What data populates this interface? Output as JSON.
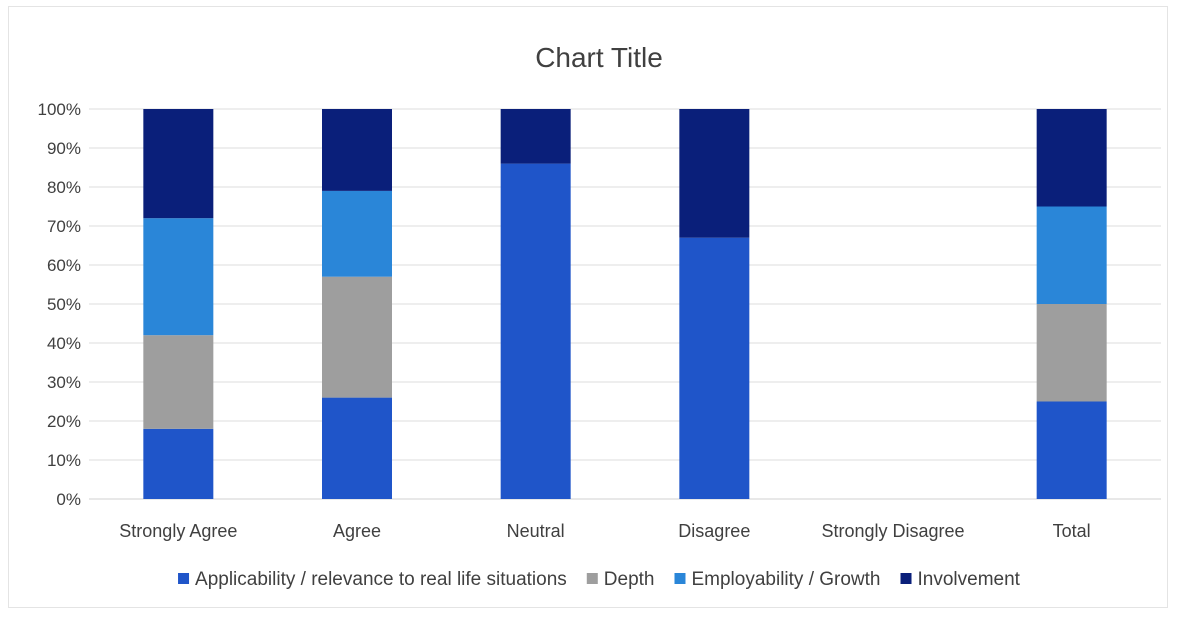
{
  "chart_data": {
    "type": "bar",
    "stacked": true,
    "percent": true,
    "title": "Chart Title",
    "categories": [
      "Strongly Agree",
      "Agree",
      "Neutral",
      "Disagree",
      "Strongly Disagree",
      "Total"
    ],
    "series": [
      {
        "name": "Applicability / relevance to real life situations",
        "color": "#1f55c9",
        "values": [
          18,
          26,
          86,
          67,
          0,
          25
        ]
      },
      {
        "name": "Depth",
        "color": "#9e9e9e",
        "values": [
          24,
          31,
          0,
          0,
          0,
          25
        ]
      },
      {
        "name": "Employability / Growth",
        "color": "#2a86d8",
        "values": [
          30,
          22,
          0,
          0,
          0,
          25
        ]
      },
      {
        "name": "Involvement",
        "color": "#0a1f7a",
        "values": [
          28,
          21,
          14,
          33,
          0,
          25
        ]
      }
    ],
    "y_ticks": [
      "0%",
      "10%",
      "20%",
      "30%",
      "40%",
      "50%",
      "60%",
      "70%",
      "80%",
      "90%",
      "100%"
    ],
    "ylim": [
      0,
      100
    ],
    "grid": true,
    "legend_position": "bottom"
  }
}
